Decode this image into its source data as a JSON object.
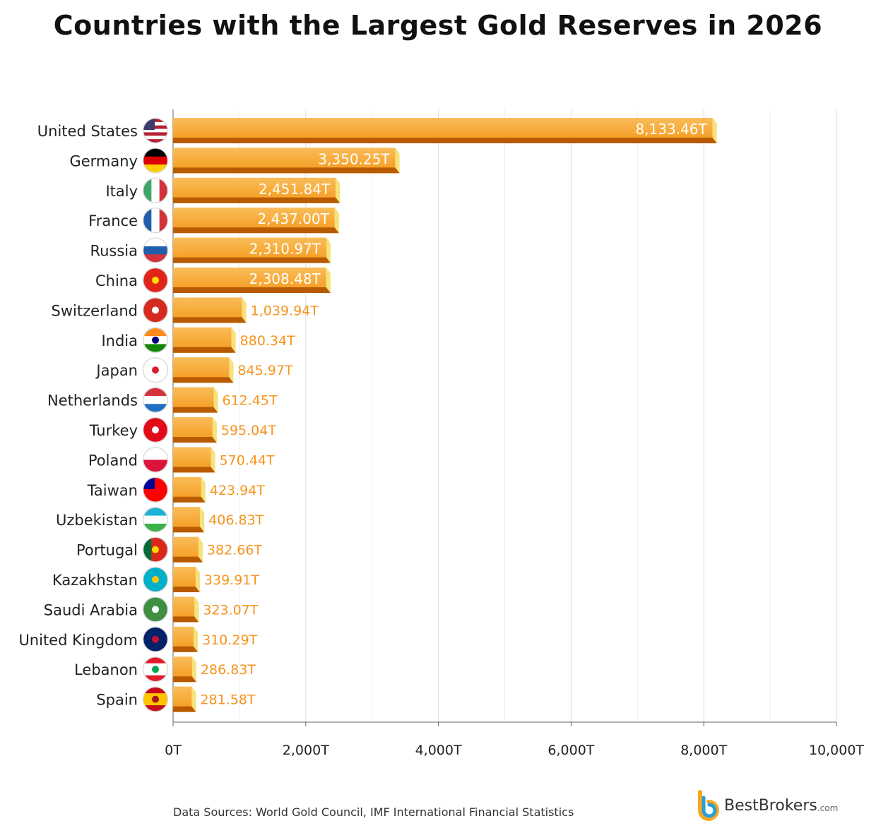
{
  "chart_data": {
    "type": "bar",
    "orientation": "horizontal",
    "title": "Countries with the Largest Gold Reserves in 2026",
    "xlabel": "",
    "ylabel": "",
    "xlim": [
      0,
      10000
    ],
    "x_ticks": [
      "0T",
      "2,000T",
      "4,000T",
      "6,000T",
      "8,000T",
      "10,000T"
    ],
    "x_tick_values": [
      0,
      2000,
      4000,
      6000,
      8000,
      10000
    ],
    "grid": true,
    "categories": [
      "United States",
      "Germany",
      "Italy",
      "France",
      "Russia",
      "China",
      "Switzerland",
      "India",
      "Japan",
      "Netherlands",
      "Turkey",
      "Poland",
      "Taiwan",
      "Uzbekistan",
      "Portugal",
      "Kazakhstan",
      "Saudi Arabia",
      "United Kingdom",
      "Lebanon",
      "Spain"
    ],
    "values": [
      8133.46,
      3350.25,
      2451.84,
      2437.0,
      2310.97,
      2308.48,
      1039.94,
      880.34,
      845.97,
      612.45,
      595.04,
      570.44,
      423.94,
      406.83,
      382.66,
      339.91,
      323.07,
      310.29,
      286.83,
      281.58
    ],
    "data_labels": [
      "8,133.46T",
      "3,350.25T",
      "2,451.84T",
      "2,437.00T",
      "2,310.97T",
      "2,308.48T",
      "1,039.94T",
      "880.34T",
      "845.97T",
      "612.45T",
      "595.04T",
      "570.44T",
      "423.94T",
      "406.83T",
      "382.66T",
      "339.91T",
      "323.07T",
      "310.29T",
      "286.83T",
      "281.58T"
    ],
    "colors": {
      "bar_top": "#f9bd5a",
      "bar_main": "#f5991a",
      "bar_shadow": "#b85a00",
      "bar_cap": "#f6e27a",
      "label_inside": "#ffffff",
      "label_outside": "#f7941d"
    }
  },
  "flags": [
    {
      "dir": "h",
      "stripes": [
        "#b22234",
        "#fff",
        "#b22234",
        "#fff",
        "#b22234",
        "#fff",
        "#b22234"
      ],
      "canton": "#3c3b6e"
    },
    {
      "dir": "h",
      "stripes": [
        "#000",
        "#dd0000",
        "#ffce00"
      ]
    },
    {
      "dir": "v",
      "stripes": [
        "#3fa66a",
        "#fff",
        "#d3323c"
      ]
    },
    {
      "dir": "v",
      "stripes": [
        "#1f5fae",
        "#fff",
        "#d3323c"
      ]
    },
    {
      "dir": "h",
      "stripes": [
        "#fff",
        "#1f5fae",
        "#d3323c"
      ]
    },
    {
      "dir": "h",
      "stripes": [
        "#e2231a"
      ],
      "mark": "#ffde00"
    },
    {
      "dir": "h",
      "stripes": [
        "#d52b1e"
      ],
      "mark": "#fff"
    },
    {
      "dir": "h",
      "stripes": [
        "#ff8c1a",
        "#fff",
        "#138808"
      ],
      "mark": "#000080"
    },
    {
      "dir": "h",
      "stripes": [
        "#fff"
      ],
      "mark": "#d3202e"
    },
    {
      "dir": "h",
      "stripes": [
        "#d3323c",
        "#fff",
        "#1f6fc0"
      ]
    },
    {
      "dir": "h",
      "stripes": [
        "#e30a17"
      ],
      "mark": "#fff"
    },
    {
      "dir": "h",
      "stripes": [
        "#fff",
        "#dc143c"
      ]
    },
    {
      "dir": "h",
      "stripes": [
        "#fe0000"
      ],
      "canton": "#000095"
    },
    {
      "dir": "h",
      "stripes": [
        "#1eb3d4",
        "#fff",
        "#3bb149"
      ]
    },
    {
      "dir": "v",
      "stripes": [
        "#046a38",
        "#da291c",
        "#da291c"
      ],
      "mark": "#ffd700"
    },
    {
      "dir": "h",
      "stripes": [
        "#00afca"
      ],
      "mark": "#fec50c"
    },
    {
      "dir": "h",
      "stripes": [
        "#3e8f44"
      ],
      "mark": "#fff"
    },
    {
      "dir": "h",
      "stripes": [
        "#012169"
      ],
      "mark": "#c8102e"
    },
    {
      "dir": "h",
      "stripes": [
        "#e21b2c",
        "#fff",
        "#fff",
        "#e21b2c"
      ],
      "mark": "#00a651"
    },
    {
      "dir": "h",
      "stripes": [
        "#c60b1e",
        "#ffc400",
        "#ffc400",
        "#c60b1e"
      ],
      "mark": "#ad1519"
    }
  ],
  "footer": {
    "source": "Data Sources: World Gold Council, IMF International Financial Statistics",
    "logo": "BestBrokers",
    "logo_suffix": ".com"
  }
}
